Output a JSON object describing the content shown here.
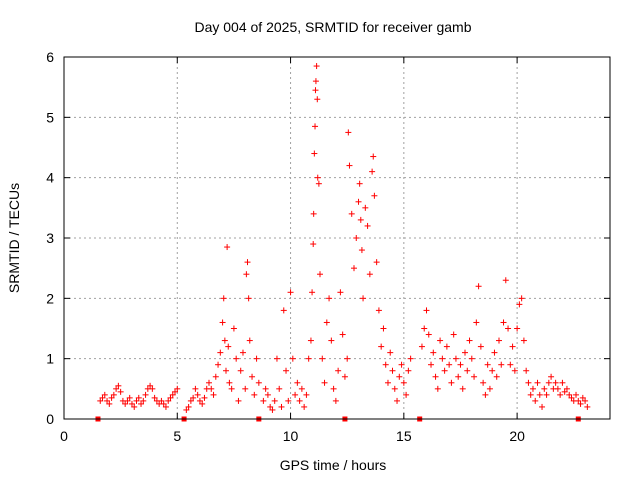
{
  "chart_data": {
    "type": "scatter",
    "title": "Day 004 of 2025, SRMTID for receiver gamb",
    "xlabel": "GPS time / hours",
    "ylabel": "SRMTID / TECUs",
    "xlim": [
      0,
      24.1
    ],
    "ylim": [
      0,
      6
    ],
    "xticks": [
      "0",
      "5",
      "10",
      "15",
      "20"
    ],
    "xtick_values": [
      0,
      5,
      10,
      15,
      20
    ],
    "yticks": [
      "0",
      "1",
      "2",
      "3",
      "4",
      "5",
      "6"
    ],
    "ytick_values": [
      0,
      1,
      2,
      3,
      4,
      5,
      6
    ],
    "grid": true,
    "marker": "+",
    "color": "#ff0000",
    "gap_markers_x": [
      1.5,
      5.3,
      8.6,
      12.4,
      15.7,
      22.7
    ],
    "series": [
      {
        "name": "SRMTID",
        "points": [
          [
            1.6,
            0.3
          ],
          [
            1.7,
            0.35
          ],
          [
            1.8,
            0.4
          ],
          [
            1.9,
            0.3
          ],
          [
            2.0,
            0.25
          ],
          [
            2.1,
            0.35
          ],
          [
            2.2,
            0.4
          ],
          [
            2.3,
            0.5
          ],
          [
            2.4,
            0.55
          ],
          [
            2.5,
            0.45
          ],
          [
            2.6,
            0.3
          ],
          [
            2.7,
            0.25
          ],
          [
            2.8,
            0.3
          ],
          [
            2.9,
            0.35
          ],
          [
            3.0,
            0.25
          ],
          [
            3.1,
            0.2
          ],
          [
            3.2,
            0.3
          ],
          [
            3.3,
            0.35
          ],
          [
            3.4,
            0.25
          ],
          [
            3.5,
            0.3
          ],
          [
            3.6,
            0.4
          ],
          [
            3.7,
            0.5
          ],
          [
            3.8,
            0.55
          ],
          [
            3.9,
            0.5
          ],
          [
            4.0,
            0.35
          ],
          [
            4.1,
            0.3
          ],
          [
            4.2,
            0.25
          ],
          [
            4.3,
            0.3
          ],
          [
            4.4,
            0.25
          ],
          [
            4.5,
            0.2
          ],
          [
            4.6,
            0.3
          ],
          [
            4.7,
            0.35
          ],
          [
            4.8,
            0.4
          ],
          [
            4.9,
            0.45
          ],
          [
            5.0,
            0.5
          ],
          [
            5.4,
            0.15
          ],
          [
            5.5,
            0.2
          ],
          [
            5.6,
            0.3
          ],
          [
            5.7,
            0.35
          ],
          [
            5.8,
            0.5
          ],
          [
            5.9,
            0.4
          ],
          [
            6.0,
            0.3
          ],
          [
            6.1,
            0.25
          ],
          [
            6.2,
            0.35
          ],
          [
            6.3,
            0.5
          ],
          [
            6.4,
            0.6
          ],
          [
            6.5,
            0.5
          ],
          [
            6.6,
            0.4
          ],
          [
            6.7,
            0.7
          ],
          [
            6.8,
            0.9
          ],
          [
            6.9,
            1.1
          ],
          [
            7.0,
            1.6
          ],
          [
            7.05,
            2.0
          ],
          [
            7.1,
            1.3
          ],
          [
            7.15,
            0.8
          ],
          [
            7.2,
            2.85
          ],
          [
            7.25,
            1.2
          ],
          [
            7.3,
            0.6
          ],
          [
            7.4,
            0.5
          ],
          [
            7.5,
            1.5
          ],
          [
            7.6,
            1.0
          ],
          [
            7.7,
            0.3
          ],
          [
            7.8,
            0.8
          ],
          [
            7.9,
            1.1
          ],
          [
            8.0,
            0.5
          ],
          [
            8.05,
            2.4
          ],
          [
            8.1,
            2.6
          ],
          [
            8.15,
            2.0
          ],
          [
            8.2,
            1.3
          ],
          [
            8.3,
            0.7
          ],
          [
            8.4,
            0.4
          ],
          [
            8.5,
            1.0
          ],
          [
            8.6,
            0.6
          ],
          [
            8.8,
            0.3
          ],
          [
            8.9,
            0.5
          ],
          [
            9.0,
            0.4
          ],
          [
            9.1,
            0.2
          ],
          [
            9.2,
            0.15
          ],
          [
            9.3,
            0.3
          ],
          [
            9.4,
            1.0
          ],
          [
            9.5,
            0.5
          ],
          [
            9.6,
            0.2
          ],
          [
            9.7,
            1.8
          ],
          [
            9.8,
            0.8
          ],
          [
            9.9,
            0.3
          ],
          [
            10.0,
            2.1
          ],
          [
            10.1,
            1.0
          ],
          [
            10.2,
            0.4
          ],
          [
            10.3,
            0.6
          ],
          [
            10.4,
            0.3
          ],
          [
            10.5,
            0.5
          ],
          [
            10.6,
            0.2
          ],
          [
            10.7,
            0.4
          ],
          [
            10.8,
            1.0
          ],
          [
            10.9,
            1.3
          ],
          [
            10.95,
            2.1
          ],
          [
            11.0,
            2.9
          ],
          [
            11.02,
            3.4
          ],
          [
            11.05,
            4.4
          ],
          [
            11.08,
            4.85
          ],
          [
            11.1,
            5.45
          ],
          [
            11.12,
            5.6
          ],
          [
            11.15,
            5.85
          ],
          [
            11.18,
            5.3
          ],
          [
            11.2,
            4.0
          ],
          [
            11.25,
            3.9
          ],
          [
            11.3,
            2.4
          ],
          [
            11.4,
            1.0
          ],
          [
            11.5,
            0.6
          ],
          [
            11.6,
            1.6
          ],
          [
            11.7,
            2.0
          ],
          [
            11.8,
            1.3
          ],
          [
            11.9,
            0.5
          ],
          [
            12.0,
            0.3
          ],
          [
            12.1,
            0.8
          ],
          [
            12.2,
            2.1
          ],
          [
            12.3,
            1.4
          ],
          [
            12.4,
            0.7
          ],
          [
            12.5,
            1.0
          ],
          [
            12.55,
            4.75
          ],
          [
            12.6,
            4.2
          ],
          [
            12.7,
            3.4
          ],
          [
            12.8,
            2.5
          ],
          [
            12.9,
            3.0
          ],
          [
            13.0,
            3.6
          ],
          [
            13.05,
            3.9
          ],
          [
            13.1,
            3.3
          ],
          [
            13.15,
            2.8
          ],
          [
            13.2,
            2.0
          ],
          [
            13.3,
            3.5
          ],
          [
            13.4,
            3.2
          ],
          [
            13.5,
            2.4
          ],
          [
            13.6,
            4.1
          ],
          [
            13.65,
            4.35
          ],
          [
            13.7,
            3.7
          ],
          [
            13.8,
            2.6
          ],
          [
            13.9,
            1.8
          ],
          [
            14.0,
            1.2
          ],
          [
            14.1,
            1.5
          ],
          [
            14.2,
            0.9
          ],
          [
            14.3,
            0.6
          ],
          [
            14.4,
            1.1
          ],
          [
            14.5,
            0.8
          ],
          [
            14.6,
            0.5
          ],
          [
            14.7,
            0.3
          ],
          [
            14.8,
            0.7
          ],
          [
            14.9,
            0.9
          ],
          [
            15.0,
            0.6
          ],
          [
            15.1,
            0.4
          ],
          [
            15.2,
            0.8
          ],
          [
            15.3,
            1.0
          ],
          [
            15.8,
            1.2
          ],
          [
            15.9,
            1.5
          ],
          [
            16.0,
            1.8
          ],
          [
            16.1,
            1.4
          ],
          [
            16.2,
            0.9
          ],
          [
            16.3,
            1.1
          ],
          [
            16.4,
            0.7
          ],
          [
            16.5,
            0.5
          ],
          [
            16.6,
            1.3
          ],
          [
            16.7,
            1.0
          ],
          [
            16.8,
            0.8
          ],
          [
            16.9,
            1.2
          ],
          [
            17.0,
            0.9
          ],
          [
            17.1,
            0.6
          ],
          [
            17.2,
            1.4
          ],
          [
            17.3,
            1.0
          ],
          [
            17.4,
            0.7
          ],
          [
            17.5,
            0.9
          ],
          [
            17.6,
            0.5
          ],
          [
            17.7,
            1.1
          ],
          [
            17.8,
            0.8
          ],
          [
            17.9,
            1.3
          ],
          [
            18.0,
            1.0
          ],
          [
            18.1,
            0.7
          ],
          [
            18.2,
            1.6
          ],
          [
            18.3,
            2.2
          ],
          [
            18.4,
            1.2
          ],
          [
            18.5,
            0.6
          ],
          [
            18.6,
            0.4
          ],
          [
            18.7,
            0.9
          ],
          [
            18.8,
            0.5
          ],
          [
            18.9,
            0.8
          ],
          [
            19.0,
            1.1
          ],
          [
            19.1,
            0.7
          ],
          [
            19.2,
            1.3
          ],
          [
            19.3,
            0.9
          ],
          [
            19.4,
            1.6
          ],
          [
            19.5,
            2.3
          ],
          [
            19.6,
            1.5
          ],
          [
            19.7,
            0.9
          ],
          [
            19.8,
            1.2
          ],
          [
            19.9,
            0.8
          ],
          [
            20.0,
            1.5
          ],
          [
            20.1,
            1.9
          ],
          [
            20.2,
            2.0
          ],
          [
            20.3,
            1.3
          ],
          [
            20.4,
            0.8
          ],
          [
            20.5,
            0.6
          ],
          [
            20.6,
            0.4
          ],
          [
            20.7,
            0.5
          ],
          [
            20.8,
            0.3
          ],
          [
            20.9,
            0.6
          ],
          [
            21.0,
            0.4
          ],
          [
            21.1,
            0.2
          ],
          [
            21.2,
            0.5
          ],
          [
            21.3,
            0.4
          ],
          [
            21.4,
            0.6
          ],
          [
            21.5,
            0.7
          ],
          [
            21.6,
            0.5
          ],
          [
            21.7,
            0.6
          ],
          [
            21.8,
            0.5
          ],
          [
            21.9,
            0.4
          ],
          [
            22.0,
            0.6
          ],
          [
            22.1,
            0.45
          ],
          [
            22.2,
            0.5
          ],
          [
            22.3,
            0.4
          ],
          [
            22.4,
            0.35
          ],
          [
            22.5,
            0.3
          ],
          [
            22.6,
            0.4
          ],
          [
            22.7,
            0.3
          ],
          [
            22.8,
            0.25
          ],
          [
            22.9,
            0.35
          ],
          [
            23.0,
            0.3
          ],
          [
            23.1,
            0.2
          ]
        ]
      }
    ]
  }
}
